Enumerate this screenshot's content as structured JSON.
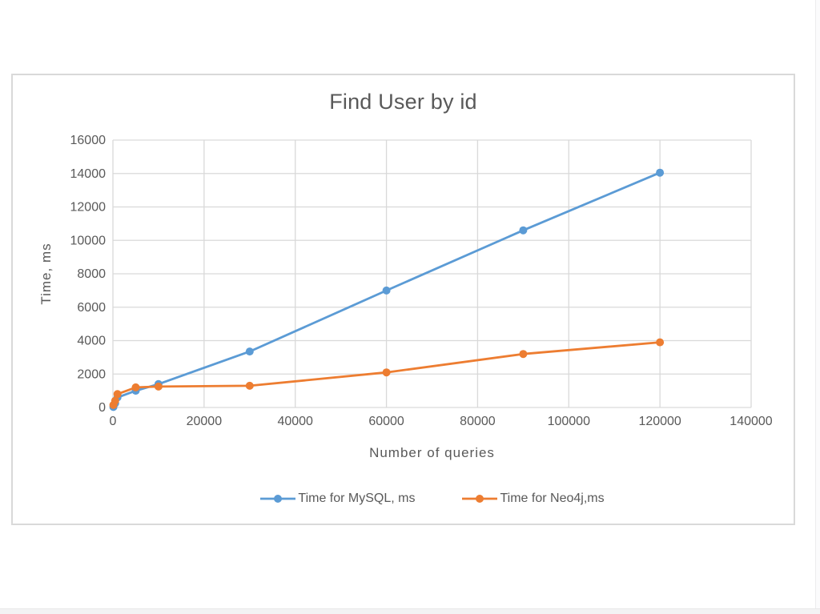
{
  "chart_data": {
    "type": "line",
    "title": "Find User by id",
    "xlabel": "Number of queries",
    "ylabel": "Time, ms",
    "xlim": [
      0,
      140000
    ],
    "ylim": [
      0,
      16000
    ],
    "x_ticks": [
      0,
      20000,
      40000,
      60000,
      80000,
      100000,
      120000,
      140000
    ],
    "y_ticks": [
      0,
      2000,
      4000,
      6000,
      8000,
      10000,
      12000,
      14000,
      16000
    ],
    "grid": true,
    "legend_position": "bottom",
    "x": [
      100,
      500,
      1000,
      5000,
      10000,
      30000,
      60000,
      90000,
      120000
    ],
    "series": [
      {
        "name": "Time for MySQL, ms",
        "color": "#5B9BD5",
        "values": [
          30,
          250,
          600,
          1000,
          1400,
          3350,
          7000,
          10600,
          14050
        ]
      },
      {
        "name": "Time for Neo4j,ms",
        "color": "#ED7D31",
        "values": [
          150,
          400,
          800,
          1200,
          1250,
          1300,
          2100,
          3200,
          3900
        ]
      }
    ]
  },
  "style": {
    "text_color": "#595959",
    "gridline_color": "#d9d9d9",
    "frame_border_color": "#d9d9d9",
    "background_color": "#ffffff"
  }
}
